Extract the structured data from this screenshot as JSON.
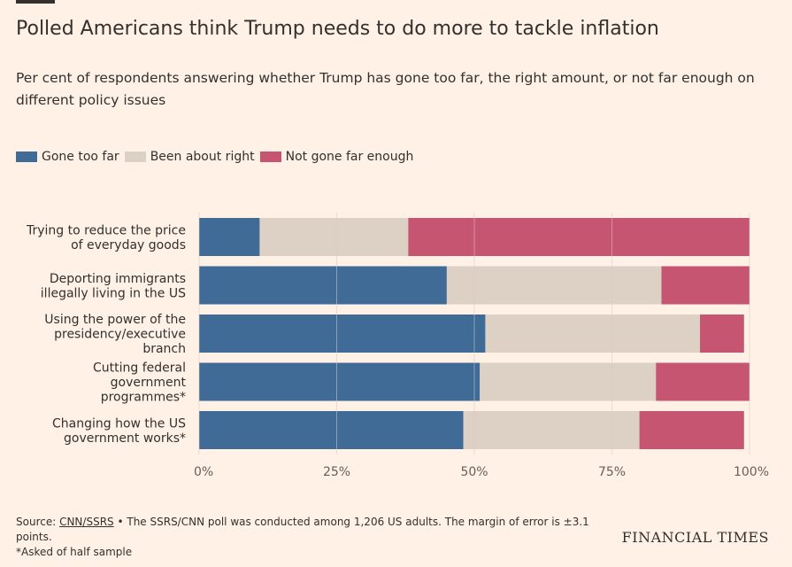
{
  "header": {
    "title": "Polled Americans think Trump needs to do more to tackle inflation",
    "subtitle": "Per cent of respondents answering whether Trump has gone too far, the right amount, or not far enough on different policy issues"
  },
  "colors": {
    "gone_too_far": "#3f6b96",
    "been_about_right": "#ddd0c5",
    "not_gone_far_enough": "#c55571",
    "gridline": "#d9cbbf"
  },
  "chart_data": {
    "type": "bar",
    "orientation": "horizontal",
    "stacked": true,
    "categories": [
      [
        "Trying to reduce the price",
        "of everyday goods"
      ],
      [
        "Deporting immigrants",
        "illegally living in the US"
      ],
      [
        "Using the power of the",
        "presidency/executive",
        "branch"
      ],
      [
        "Cutting federal",
        "government",
        "programmes*"
      ],
      [
        "Changing how the US",
        "government works*"
      ]
    ],
    "series": [
      {
        "name": "Gone too far",
        "values": [
          11,
          45,
          52,
          51,
          48
        ]
      },
      {
        "name": "Been about right",
        "values": [
          27,
          39,
          39,
          32,
          32
        ]
      },
      {
        "name": "Not gone far enough",
        "values": [
          62,
          16,
          8,
          17,
          19
        ]
      }
    ],
    "xlim": [
      0,
      100
    ],
    "xticks": [
      "0%",
      "25%",
      "50%",
      "75%",
      "100%"
    ],
    "xtick_values": [
      0,
      25,
      50,
      75,
      100
    ],
    "grid": true,
    "legend_position": "top-left"
  },
  "footer": {
    "source_prefix": "Source: ",
    "source_link": "CNN/SSRS",
    "source_text": " • The SSRS/CNN poll was conducted among 1,206 US adults. The margin of error is ±3.1 points.",
    "note": "*Asked of half sample"
  },
  "logo": "FINANCIAL TIMES"
}
